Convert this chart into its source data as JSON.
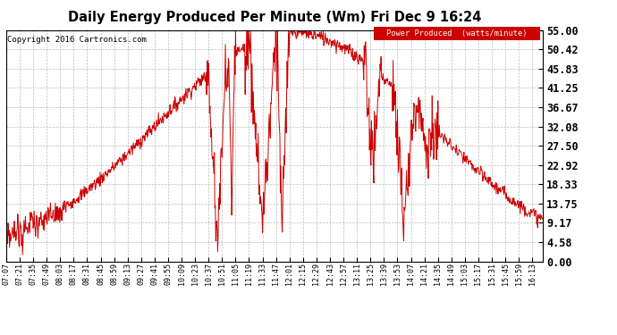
{
  "title": "Daily Energy Produced Per Minute (Wm) Fri Dec 9 16:24",
  "copyright": "Copyright 2016 Cartronics.com",
  "legend_label": "Power Produced  (watts/minute)",
  "legend_bg": "#cc0000",
  "legend_fg": "#ffffff",
  "line_color": "#cc0000",
  "bg_color": "#ffffff",
  "grid_color": "#bbbbbb",
  "yticks": [
    0.0,
    4.58,
    9.17,
    13.75,
    18.33,
    22.92,
    27.5,
    32.08,
    36.67,
    41.25,
    45.83,
    50.42,
    55.0
  ],
  "ylim": [
    0.0,
    55.0
  ],
  "xtick_labels": [
    "07:07",
    "07:21",
    "07:35",
    "07:49",
    "08:03",
    "08:17",
    "08:31",
    "08:45",
    "08:59",
    "09:13",
    "09:27",
    "09:41",
    "09:55",
    "10:09",
    "10:23",
    "10:37",
    "10:51",
    "11:05",
    "11:19",
    "11:33",
    "11:47",
    "12:01",
    "12:15",
    "12:29",
    "12:43",
    "12:57",
    "13:11",
    "13:25",
    "13:39",
    "13:53",
    "14:07",
    "14:21",
    "14:35",
    "14:49",
    "15:03",
    "15:17",
    "15:31",
    "15:45",
    "15:59",
    "16:13"
  ]
}
